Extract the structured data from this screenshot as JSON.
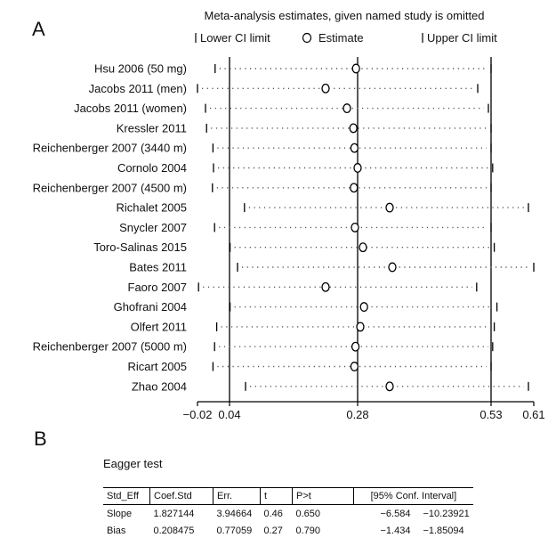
{
  "chart_data": {
    "type": "forest",
    "panel_label": "A",
    "title": "Meta-analysis estimates, given named study is omitted",
    "legend": [
      "Lower CI limit",
      "Estimate",
      "Upper CI limit"
    ],
    "legend_placement": "top",
    "studies": [
      {
        "name": "Hsu 2006 (50 mg)",
        "lower": 0.013,
        "estimate": 0.277,
        "upper": 0.53
      },
      {
        "name": "Jacobs 2011 (men)",
        "lower": -0.02,
        "estimate": 0.22,
        "upper": 0.505
      },
      {
        "name": "Jacobs 2011 (women)",
        "lower": -0.005,
        "estimate": 0.26,
        "upper": 0.525
      },
      {
        "name": "Kressler 2011",
        "lower": -0.003,
        "estimate": 0.272,
        "upper": 0.53
      },
      {
        "name": "Reichenberger 2007 (3440 m)",
        "lower": 0.009,
        "estimate": 0.274,
        "upper": 0.53
      },
      {
        "name": "Cornolo 2004",
        "lower": 0.01,
        "estimate": 0.28,
        "upper": 0.533
      },
      {
        "name": "Reichenberger 2007 (4500 m)",
        "lower": 0.008,
        "estimate": 0.273,
        "upper": 0.53
      },
      {
        "name": "Richalet 2005",
        "lower": 0.068,
        "estimate": 0.34,
        "upper": 0.6
      },
      {
        "name": "Snycler 2007",
        "lower": 0.012,
        "estimate": 0.275,
        "upper": 0.53
      },
      {
        "name": "Toro-Salinas 2015",
        "lower": 0.041,
        "estimate": 0.29,
        "upper": 0.536
      },
      {
        "name": "Bates 2011",
        "lower": 0.055,
        "estimate": 0.345,
        "upper": 0.61
      },
      {
        "name": "Faoro 2007",
        "lower": -0.018,
        "estimate": 0.22,
        "upper": 0.503
      },
      {
        "name": "Ghofrani 2004",
        "lower": 0.041,
        "estimate": 0.292,
        "upper": 0.541
      },
      {
        "name": "Olfert 2011",
        "lower": 0.016,
        "estimate": 0.285,
        "upper": 0.536
      },
      {
        "name": "Reichenberger 2007 (5000 m)",
        "lower": 0.012,
        "estimate": 0.276,
        "upper": 0.533
      },
      {
        "name": "Ricart 2005",
        "lower": 0.009,
        "estimate": 0.274,
        "upper": 0.53
      },
      {
        "name": "Zhao 2004",
        "lower": 0.07,
        "estimate": 0.34,
        "upper": 0.6
      }
    ],
    "reference_lines": [
      0.04,
      0.28,
      0.53
    ],
    "x_ticks": [
      "-0.02",
      "0.04",
      "0.28",
      "0.53",
      "0.61"
    ],
    "xlim": [
      -0.02,
      0.61
    ]
  },
  "egger": {
    "panel_label": "B",
    "title": "Eagger test",
    "headers": [
      "Std_Eff",
      "Coef.Std",
      "Err.",
      "t",
      "P>t",
      "[95% Conf. Interval]"
    ],
    "rows": [
      {
        "label": "Slope",
        "coef": "1.827144",
        "err": "3.94664",
        "t": "0.46",
        "p": "0.650",
        "ci_low": "−6.584",
        "ci_high": "−10.23921"
      },
      {
        "label": "Bias",
        "coef": "0.208475",
        "err": "0.77059",
        "t": "0.27",
        "p": "0.790",
        "ci_low": "−1.434",
        "ci_high": "−1.85094"
      }
    ]
  },
  "colors": {
    "lines": "#000000",
    "dots": "#555555"
  }
}
